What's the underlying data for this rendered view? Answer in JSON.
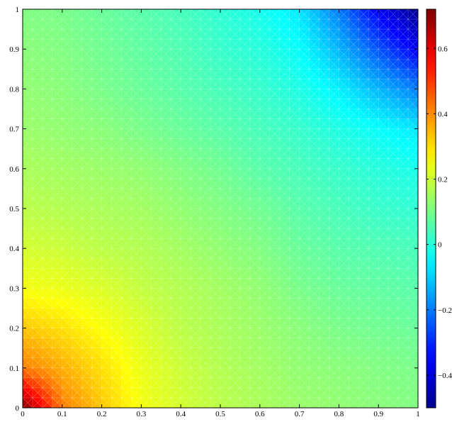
{
  "chart_data": {
    "type": "heatmap",
    "title": "",
    "xlabel": "",
    "ylabel": "",
    "xlim": [
      0,
      1
    ],
    "ylim": [
      0,
      1
    ],
    "x_ticks": [
      0,
      0.1,
      0.2,
      0.3,
      0.4,
      0.5,
      0.6,
      0.7,
      0.8,
      0.9,
      1
    ],
    "x_tick_labels": [
      "0",
      "0.1",
      "0.2",
      "0.3",
      "0.4",
      "0.5",
      "0.6",
      "0.7",
      "0.8",
      "0.9",
      "1"
    ],
    "y_ticks": [
      0,
      0.1,
      0.2,
      0.3,
      0.4,
      0.5,
      0.6,
      0.7,
      0.8,
      0.9,
      1
    ],
    "y_tick_labels": [
      "0",
      "0.1",
      "0.2",
      "0.3",
      "0.4",
      "0.5",
      "0.6",
      "0.7",
      "0.8",
      "0.9",
      "1"
    ],
    "grid_points": [
      0,
      0.1,
      0.2,
      0.3,
      0.4,
      0.5,
      0.6,
      0.7,
      0.8,
      0.9,
      1
    ],
    "z": [
      [
        0.72,
        0.42,
        0.33,
        0.25,
        0.21,
        0.18,
        0.16,
        0.14,
        0.13,
        0.12,
        0.11
      ],
      [
        0.42,
        0.36,
        0.3,
        0.24,
        0.2,
        0.17,
        0.15,
        0.13,
        0.12,
        0.11,
        0.1
      ],
      [
        0.33,
        0.3,
        0.26,
        0.22,
        0.18,
        0.16,
        0.14,
        0.12,
        0.1,
        0.09,
        0.08
      ],
      [
        0.25,
        0.24,
        0.22,
        0.19,
        0.17,
        0.15,
        0.13,
        0.1,
        0.08,
        0.07,
        0.06
      ],
      [
        0.21,
        0.2,
        0.18,
        0.17,
        0.15,
        0.13,
        0.11,
        0.08,
        0.06,
        0.05,
        0.04
      ],
      [
        0.18,
        0.17,
        0.16,
        0.15,
        0.13,
        0.11,
        0.09,
        0.06,
        0.04,
        0.02,
        0.01
      ],
      [
        0.16,
        0.15,
        0.14,
        0.13,
        0.11,
        0.09,
        0.06,
        0.04,
        0.02,
        0.0,
        -0.02
      ],
      [
        0.14,
        0.13,
        0.12,
        0.1,
        0.08,
        0.06,
        0.04,
        0.02,
        -0.01,
        -0.04,
        -0.07
      ],
      [
        0.13,
        0.12,
        0.1,
        0.08,
        0.06,
        0.04,
        0.02,
        -0.01,
        -0.06,
        -0.13,
        -0.2
      ],
      [
        0.12,
        0.11,
        0.09,
        0.07,
        0.05,
        0.02,
        0.0,
        -0.04,
        -0.13,
        -0.25,
        -0.36
      ],
      [
        0.11,
        0.1,
        0.08,
        0.06,
        0.04,
        0.01,
        -0.02,
        -0.07,
        -0.2,
        -0.36,
        -0.5
      ]
    ],
    "colorbar": {
      "range": [
        -0.5,
        0.72
      ],
      "ticks": [
        -0.4,
        -0.2,
        0,
        0.2,
        0.4,
        0.6
      ],
      "tick_labels": [
        "−0.4",
        "−0.2",
        "0",
        "0.2",
        "0.4",
        "0.6"
      ]
    },
    "colormap": "jet",
    "mesh_overlay": "white triangular mesh lines",
    "grid": false
  }
}
